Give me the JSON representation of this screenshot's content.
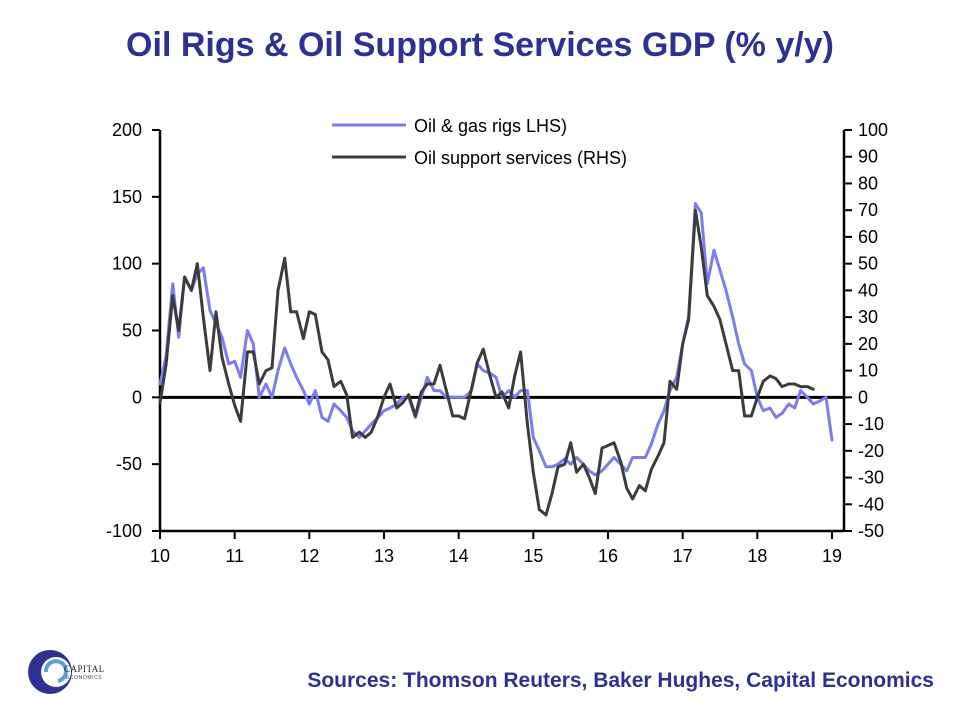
{
  "title": "Oil Rigs & Oil Support Services GDP (% y/y)",
  "source": "Sources: Thomson Reuters, Baker Hughes, Capital Economics",
  "logo": {
    "line1": "CAPITAL",
    "line2": "ECONOMICS"
  },
  "colors": {
    "title": "#2e3192",
    "rigs": "#7b7cf0",
    "support": "#3c3c3c",
    "axis": "#000000"
  },
  "chart_data": {
    "type": "line",
    "title": "Oil Rigs & Oil Support Services GDP (% y/y)",
    "x_ticks": [
      "10",
      "11",
      "12",
      "13",
      "14",
      "15",
      "16",
      "17",
      "18",
      "19"
    ],
    "x_range": [
      10,
      19
    ],
    "y_left": {
      "range": [
        -100,
        200
      ],
      "ticks": [
        "200",
        "150",
        "100",
        "50",
        "0",
        "-50",
        "-100"
      ]
    },
    "y_right": {
      "range": [
        -50,
        100
      ],
      "ticks": [
        "100",
        "90",
        "80",
        "70",
        "60",
        "50",
        "40",
        "30",
        "20",
        "10",
        "0",
        "-10",
        "-20",
        "-30",
        "-40",
        "-50"
      ]
    },
    "legend": [
      "Oil & gas rigs LHS)",
      "Oil support services (RHS)"
    ],
    "series": [
      {
        "name": "Oil & gas rigs LHS)",
        "axis": "left",
        "x": [
          10.0,
          10.08,
          10.17,
          10.25,
          10.33,
          10.42,
          10.5,
          10.58,
          10.67,
          10.75,
          10.83,
          10.92,
          11.0,
          11.08,
          11.17,
          11.25,
          11.33,
          11.42,
          11.5,
          11.58,
          11.67,
          11.75,
          11.83,
          11.92,
          12.0,
          12.08,
          12.17,
          12.25,
          12.33,
          12.42,
          12.5,
          12.58,
          12.67,
          12.75,
          12.83,
          12.92,
          13.0,
          13.08,
          13.17,
          13.25,
          13.33,
          13.42,
          13.5,
          13.58,
          13.67,
          13.75,
          13.83,
          13.92,
          14.0,
          14.08,
          14.17,
          14.25,
          14.33,
          14.42,
          14.5,
          14.58,
          14.67,
          14.75,
          14.83,
          14.92,
          15.0,
          15.08,
          15.17,
          15.25,
          15.33,
          15.42,
          15.5,
          15.58,
          15.67,
          15.75,
          15.83,
          15.92,
          16.0,
          16.08,
          16.17,
          16.25,
          16.33,
          16.42,
          16.5,
          16.58,
          16.67,
          16.75,
          16.83,
          16.92,
          17.0,
          17.08,
          17.17,
          17.25,
          17.33,
          17.42,
          17.5,
          17.58,
          17.67,
          17.75,
          17.83,
          17.92,
          18.0,
          18.08,
          18.17,
          18.25,
          18.33,
          18.42,
          18.5,
          18.58,
          18.67,
          18.75,
          18.83,
          18.92,
          19.0
        ],
        "values": [
          10,
          30,
          85,
          45,
          90,
          80,
          92,
          97,
          65,
          55,
          45,
          25,
          27,
          15,
          50,
          40,
          0,
          10,
          0,
          20,
          37,
          25,
          15,
          5,
          -5,
          5,
          -15,
          -18,
          -5,
          -10,
          -15,
          -25,
          -30,
          -25,
          -20,
          -15,
          -10,
          -8,
          -5,
          0,
          0,
          -15,
          0,
          15,
          5,
          5,
          0,
          0,
          0,
          0,
          5,
          25,
          20,
          18,
          15,
          0,
          5,
          0,
          5,
          5,
          -30,
          -40,
          -52,
          -52,
          -50,
          -46,
          -50,
          -45,
          -50,
          -55,
          -58,
          -55,
          -50,
          -45,
          -50,
          -55,
          -45,
          -45,
          -45,
          -35,
          -20,
          -10,
          5,
          15,
          40,
          60,
          145,
          138,
          85,
          110,
          95,
          80,
          60,
          40,
          25,
          20,
          0,
          -10,
          -8,
          -15,
          -12,
          -5,
          -8,
          5,
          0,
          -5,
          -3,
          0,
          -32
        ]
      },
      {
        "name": "Oil support services (RHS)",
        "axis": "right",
        "x": [
          10.0,
          10.08,
          10.17,
          10.25,
          10.33,
          10.42,
          10.5,
          10.58,
          10.67,
          10.75,
          10.83,
          10.92,
          11.0,
          11.08,
          11.17,
          11.25,
          11.33,
          11.42,
          11.5,
          11.58,
          11.67,
          11.75,
          11.83,
          11.92,
          12.0,
          12.08,
          12.17,
          12.25,
          12.33,
          12.42,
          12.5,
          12.58,
          12.67,
          12.75,
          12.83,
          12.92,
          13.0,
          13.08,
          13.17,
          13.25,
          13.33,
          13.42,
          13.5,
          13.58,
          13.67,
          13.75,
          13.83,
          13.92,
          14.0,
          14.08,
          14.17,
          14.25,
          14.33,
          14.42,
          14.5,
          14.58,
          14.67,
          14.75,
          14.83,
          14.92,
          15.0,
          15.08,
          15.17,
          15.25,
          15.33,
          15.42,
          15.5,
          15.58,
          15.67,
          15.75,
          15.83,
          15.92,
          16.0,
          16.08,
          16.17,
          16.25,
          16.33,
          16.42,
          16.5,
          16.58,
          16.67,
          16.75,
          16.83,
          16.92,
          17.0,
          17.08,
          17.17,
          17.25,
          17.33,
          17.42,
          17.5,
          17.58,
          17.67,
          17.75,
          17.83,
          17.92,
          18.0,
          18.08,
          18.17,
          18.25,
          18.33,
          18.42,
          18.5,
          18.58,
          18.67,
          18.75
        ],
        "values": [
          -2,
          12,
          38,
          25,
          45,
          40,
          50,
          30,
          10,
          32,
          15,
          5,
          -3,
          -9,
          17,
          17,
          5,
          10,
          11,
          40,
          52,
          32,
          32,
          22,
          32,
          31,
          17,
          14,
          4,
          6,
          1,
          -15,
          -13,
          -15,
          -13,
          -7,
          0,
          5,
          -4,
          -2,
          1,
          -7,
          2,
          5,
          5,
          12,
          3,
          -7,
          -7,
          -8,
          3,
          13,
          18,
          8,
          0,
          2,
          -4,
          8,
          17,
          -10,
          -28,
          -42,
          -44,
          -36,
          -26,
          -25,
          -17,
          -28,
          -25,
          -30,
          -36,
          -19,
          -18,
          -17,
          -24,
          -34,
          -38,
          -33,
          -35,
          -27,
          -22,
          -17,
          6,
          3,
          20,
          29,
          70,
          56,
          38,
          34,
          29,
          20,
          10,
          10,
          -7,
          -7,
          0,
          6,
          8,
          7,
          4,
          5,
          5,
          4,
          4,
          3
        ]
      }
    ]
  }
}
